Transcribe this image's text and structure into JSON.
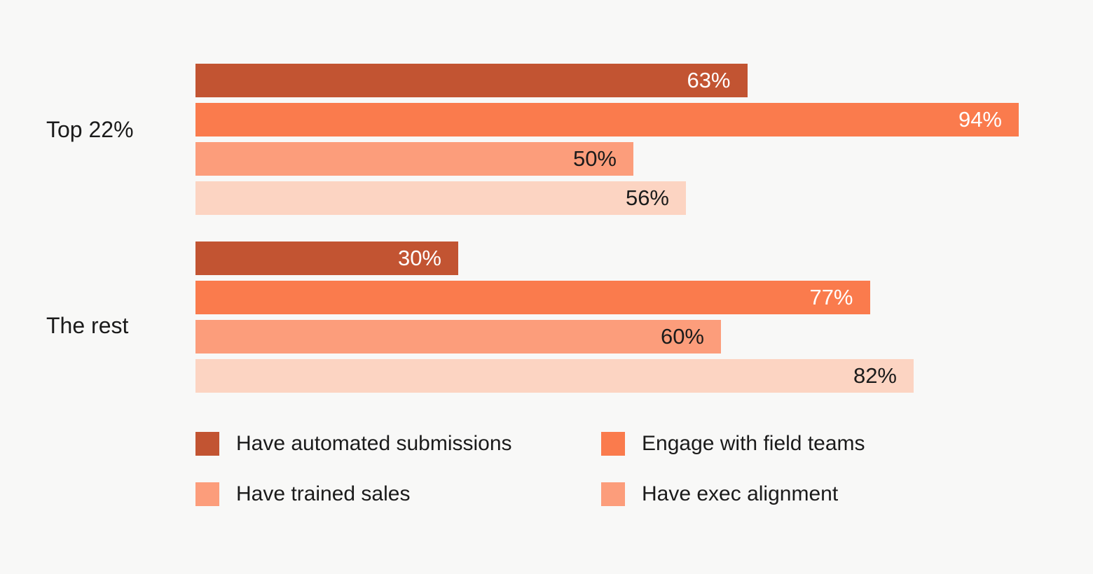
{
  "theme": {
    "background_color": "#F8F8F7",
    "text_color": "#1B1B1B"
  },
  "chart_data": {
    "type": "bar",
    "orientation": "horizontal",
    "title": "",
    "xlabel": "",
    "ylabel": "",
    "xlim": [
      0,
      100
    ],
    "grid": false,
    "legend_position": "bottom",
    "value_suffix": "%",
    "groups": [
      "Top 22%",
      "The rest"
    ],
    "series": [
      {
        "name": "Have automated submissions",
        "color": "#C25432",
        "legend_color": "#C25432",
        "label_color": "#FFFFFF",
        "values": [
          63,
          30
        ]
      },
      {
        "name": "Engage with field teams",
        "color": "#FA7B4D",
        "legend_color": "#FA7B4D",
        "label_color": "#FFFFFF",
        "values": [
          94,
          77
        ]
      },
      {
        "name": "Have trained sales",
        "color": "#FC9D7B",
        "legend_color": "#FC9D7B",
        "label_color": "#1B1B1B",
        "values": [
          50,
          60
        ]
      },
      {
        "name": "Have exec alignment",
        "color": "#FCD4C2",
        "legend_color": "#FC9D7B",
        "label_color": "#1B1B1B",
        "values": [
          56,
          82
        ]
      }
    ]
  }
}
